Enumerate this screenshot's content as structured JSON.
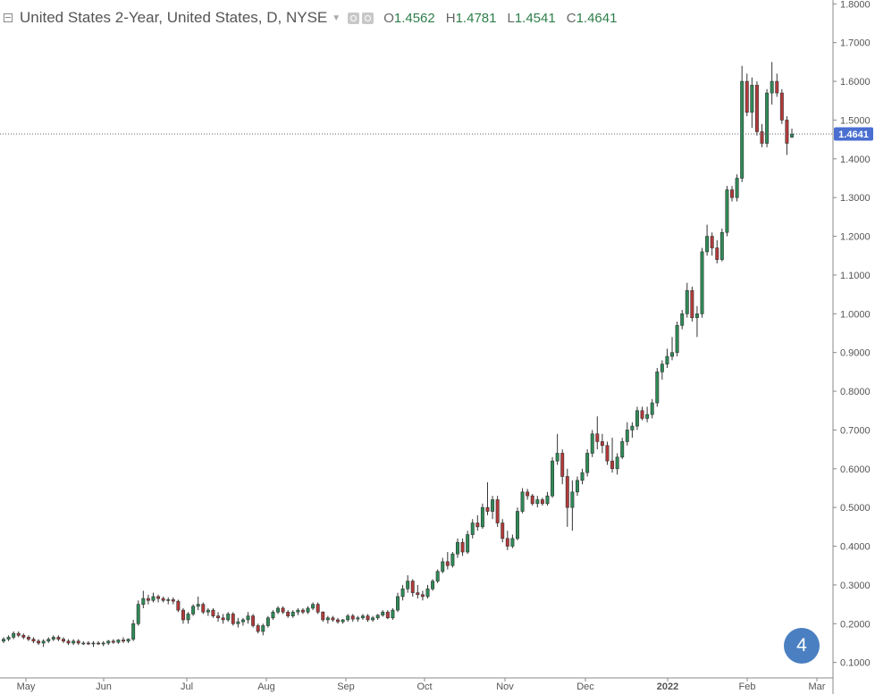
{
  "header": {
    "title": "United States 2-Year, United States, D, NYSE",
    "ohlc": [
      {
        "key": "O",
        "value": "1.4562"
      },
      {
        "key": "H",
        "value": "1.4781"
      },
      {
        "key": "L",
        "value": "1.4541"
      },
      {
        "key": "C",
        "value": "1.4641"
      }
    ]
  },
  "badge_label": "4",
  "colors": {
    "up": "#2e8b57",
    "down": "#b33a3a",
    "price_tag": "#4a6fd1",
    "grid_axis": "#999999"
  },
  "chart_data": {
    "type": "candlestick",
    "title": "United States 2-Year, United States, D, NYSE",
    "ylim": [
      0.06,
      1.81
    ],
    "y_ticks": [
      "0.1000",
      "0.2000",
      "0.3000",
      "0.4000",
      "0.5000",
      "0.6000",
      "0.7000",
      "0.8000",
      "0.9000",
      "1.0000",
      "1.1000",
      "1.2000",
      "1.3000",
      "1.4000",
      "1.5000",
      "1.6000",
      "1.7000",
      "1.8000"
    ],
    "x_ticks": [
      "May",
      "Jun",
      "Jul",
      "Aug",
      "Sep",
      "Oct",
      "Nov",
      "Dec",
      "2022",
      "Feb",
      "Mar"
    ],
    "last_price": "1.4641",
    "series": [
      {
        "name": "daily",
        "values": [
          [
            0.155,
            0.165,
            0.15,
            0.16
          ],
          [
            0.16,
            0.17,
            0.155,
            0.165
          ],
          [
            0.165,
            0.18,
            0.16,
            0.175
          ],
          [
            0.175,
            0.18,
            0.165,
            0.17
          ],
          [
            0.17,
            0.175,
            0.16,
            0.165
          ],
          [
            0.165,
            0.17,
            0.155,
            0.16
          ],
          [
            0.16,
            0.165,
            0.15,
            0.155
          ],
          [
            0.155,
            0.16,
            0.145,
            0.15
          ],
          [
            0.15,
            0.16,
            0.14,
            0.155
          ],
          [
            0.155,
            0.165,
            0.15,
            0.16
          ],
          [
            0.16,
            0.17,
            0.155,
            0.165
          ],
          [
            0.165,
            0.17,
            0.155,
            0.16
          ],
          [
            0.16,
            0.165,
            0.15,
            0.155
          ],
          [
            0.155,
            0.16,
            0.145,
            0.15
          ],
          [
            0.15,
            0.16,
            0.145,
            0.155
          ],
          [
            0.155,
            0.16,
            0.145,
            0.15
          ],
          [
            0.15,
            0.155,
            0.145,
            0.15
          ],
          [
            0.15,
            0.155,
            0.145,
            0.148
          ],
          [
            0.148,
            0.155,
            0.14,
            0.15
          ],
          [
            0.15,
            0.155,
            0.145,
            0.148
          ],
          [
            0.148,
            0.155,
            0.142,
            0.15
          ],
          [
            0.15,
            0.158,
            0.145,
            0.155
          ],
          [
            0.155,
            0.16,
            0.148,
            0.152
          ],
          [
            0.152,
            0.16,
            0.148,
            0.158
          ],
          [
            0.158,
            0.165,
            0.15,
            0.155
          ],
          [
            0.155,
            0.162,
            0.15,
            0.16
          ],
          [
            0.16,
            0.21,
            0.155,
            0.2
          ],
          [
            0.2,
            0.26,
            0.195,
            0.25
          ],
          [
            0.25,
            0.285,
            0.24,
            0.265
          ],
          [
            0.265,
            0.275,
            0.25,
            0.26
          ],
          [
            0.26,
            0.28,
            0.255,
            0.27
          ],
          [
            0.27,
            0.275,
            0.255,
            0.265
          ],
          [
            0.265,
            0.27,
            0.255,
            0.26
          ],
          [
            0.26,
            0.268,
            0.25,
            0.262
          ],
          [
            0.262,
            0.268,
            0.25,
            0.258
          ],
          [
            0.258,
            0.262,
            0.23,
            0.235
          ],
          [
            0.235,
            0.24,
            0.2,
            0.21
          ],
          [
            0.21,
            0.23,
            0.2,
            0.225
          ],
          [
            0.225,
            0.25,
            0.22,
            0.245
          ],
          [
            0.245,
            0.27,
            0.235,
            0.25
          ],
          [
            0.25,
            0.255,
            0.225,
            0.23
          ],
          [
            0.23,
            0.24,
            0.22,
            0.235
          ],
          [
            0.235,
            0.24,
            0.215,
            0.22
          ],
          [
            0.22,
            0.23,
            0.205,
            0.215
          ],
          [
            0.215,
            0.225,
            0.2,
            0.21
          ],
          [
            0.21,
            0.23,
            0.205,
            0.225
          ],
          [
            0.225,
            0.23,
            0.195,
            0.2
          ],
          [
            0.2,
            0.215,
            0.19,
            0.205
          ],
          [
            0.205,
            0.215,
            0.195,
            0.21
          ],
          [
            0.21,
            0.23,
            0.2,
            0.22
          ],
          [
            0.22,
            0.225,
            0.19,
            0.195
          ],
          [
            0.195,
            0.2,
            0.175,
            0.18
          ],
          [
            0.18,
            0.2,
            0.17,
            0.195
          ],
          [
            0.195,
            0.22,
            0.19,
            0.215
          ],
          [
            0.215,
            0.235,
            0.21,
            0.23
          ],
          [
            0.23,
            0.245,
            0.225,
            0.24
          ],
          [
            0.24,
            0.245,
            0.225,
            0.23
          ],
          [
            0.23,
            0.235,
            0.215,
            0.22
          ],
          [
            0.22,
            0.235,
            0.215,
            0.23
          ],
          [
            0.23,
            0.24,
            0.222,
            0.235
          ],
          [
            0.235,
            0.24,
            0.225,
            0.23
          ],
          [
            0.23,
            0.245,
            0.225,
            0.24
          ],
          [
            0.24,
            0.255,
            0.235,
            0.25
          ],
          [
            0.25,
            0.255,
            0.225,
            0.23
          ],
          [
            0.23,
            0.232,
            0.205,
            0.21
          ],
          [
            0.21,
            0.22,
            0.2,
            0.215
          ],
          [
            0.215,
            0.22,
            0.205,
            0.21
          ],
          [
            0.21,
            0.215,
            0.2,
            0.205
          ],
          [
            0.205,
            0.212,
            0.2,
            0.21
          ],
          [
            0.21,
            0.225,
            0.205,
            0.22
          ],
          [
            0.22,
            0.225,
            0.205,
            0.212
          ],
          [
            0.212,
            0.22,
            0.205,
            0.215
          ],
          [
            0.215,
            0.225,
            0.21,
            0.22
          ],
          [
            0.22,
            0.225,
            0.205,
            0.21
          ],
          [
            0.21,
            0.22,
            0.205,
            0.215
          ],
          [
            0.215,
            0.225,
            0.21,
            0.222
          ],
          [
            0.222,
            0.235,
            0.218,
            0.23
          ],
          [
            0.23,
            0.235,
            0.212,
            0.215
          ],
          [
            0.215,
            0.24,
            0.21,
            0.235
          ],
          [
            0.235,
            0.28,
            0.23,
            0.27
          ],
          [
            0.27,
            0.3,
            0.26,
            0.29
          ],
          [
            0.29,
            0.325,
            0.28,
            0.31
          ],
          [
            0.31,
            0.315,
            0.27,
            0.28
          ],
          [
            0.28,
            0.3,
            0.265,
            0.275
          ],
          [
            0.275,
            0.285,
            0.26,
            0.27
          ],
          [
            0.27,
            0.3,
            0.265,
            0.29
          ],
          [
            0.29,
            0.315,
            0.285,
            0.31
          ],
          [
            0.31,
            0.34,
            0.305,
            0.335
          ],
          [
            0.335,
            0.37,
            0.33,
            0.36
          ],
          [
            0.36,
            0.385,
            0.34,
            0.35
          ],
          [
            0.35,
            0.385,
            0.345,
            0.38
          ],
          [
            0.38,
            0.42,
            0.37,
            0.41
          ],
          [
            0.41,
            0.42,
            0.375,
            0.385
          ],
          [
            0.385,
            0.44,
            0.38,
            0.43
          ],
          [
            0.43,
            0.47,
            0.42,
            0.46
          ],
          [
            0.46,
            0.48,
            0.44,
            0.45
          ],
          [
            0.45,
            0.51,
            0.445,
            0.5
          ],
          [
            0.5,
            0.565,
            0.48,
            0.49
          ],
          [
            0.49,
            0.53,
            0.47,
            0.52
          ],
          [
            0.52,
            0.53,
            0.45,
            0.46
          ],
          [
            0.46,
            0.47,
            0.41,
            0.42
          ],
          [
            0.42,
            0.44,
            0.39,
            0.4
          ],
          [
            0.4,
            0.43,
            0.395,
            0.42
          ],
          [
            0.42,
            0.5,
            0.415,
            0.49
          ],
          [
            0.49,
            0.55,
            0.485,
            0.54
          ],
          [
            0.54,
            0.548,
            0.52,
            0.53
          ],
          [
            0.53,
            0.535,
            0.505,
            0.51
          ],
          [
            0.51,
            0.53,
            0.5,
            0.52
          ],
          [
            0.52,
            0.525,
            0.505,
            0.51
          ],
          [
            0.51,
            0.54,
            0.505,
            0.53
          ],
          [
            0.53,
            0.63,
            0.525,
            0.62
          ],
          [
            0.62,
            0.69,
            0.61,
            0.64
          ],
          [
            0.64,
            0.65,
            0.56,
            0.58
          ],
          [
            0.58,
            0.6,
            0.45,
            0.5
          ],
          [
            0.5,
            0.57,
            0.44,
            0.54
          ],
          [
            0.54,
            0.58,
            0.53,
            0.57
          ],
          [
            0.57,
            0.6,
            0.56,
            0.59
          ],
          [
            0.59,
            0.65,
            0.58,
            0.64
          ],
          [
            0.64,
            0.7,
            0.63,
            0.69
          ],
          [
            0.69,
            0.735,
            0.65,
            0.67
          ],
          [
            0.67,
            0.69,
            0.64,
            0.66
          ],
          [
            0.66,
            0.67,
            0.61,
            0.62
          ],
          [
            0.62,
            0.68,
            0.59,
            0.6
          ],
          [
            0.6,
            0.64,
            0.585,
            0.63
          ],
          [
            0.63,
            0.68,
            0.625,
            0.67
          ],
          [
            0.67,
            0.72,
            0.66,
            0.7
          ],
          [
            0.7,
            0.72,
            0.68,
            0.71
          ],
          [
            0.71,
            0.76,
            0.7,
            0.75
          ],
          [
            0.75,
            0.76,
            0.725,
            0.73
          ],
          [
            0.73,
            0.76,
            0.72,
            0.74
          ],
          [
            0.74,
            0.78,
            0.73,
            0.77
          ],
          [
            0.77,
            0.86,
            0.76,
            0.85
          ],
          [
            0.85,
            0.88,
            0.83,
            0.87
          ],
          [
            0.87,
            0.91,
            0.86,
            0.89
          ],
          [
            0.89,
            0.94,
            0.88,
            0.9
          ],
          [
            0.9,
            0.98,
            0.89,
            0.97
          ],
          [
            0.97,
            1.01,
            0.96,
            1.0
          ],
          [
            1.0,
            1.08,
            0.99,
            1.06
          ],
          [
            1.06,
            1.07,
            0.98,
            0.99
          ],
          [
            0.99,
            1.02,
            0.94,
            1.0
          ],
          [
            1.0,
            1.17,
            0.99,
            1.16
          ],
          [
            1.16,
            1.23,
            1.15,
            1.2
          ],
          [
            1.2,
            1.21,
            1.15,
            1.17
          ],
          [
            1.17,
            1.19,
            1.13,
            1.14
          ],
          [
            1.14,
            1.22,
            1.135,
            1.21
          ],
          [
            1.21,
            1.33,
            1.2,
            1.32
          ],
          [
            1.32,
            1.33,
            1.29,
            1.3
          ],
          [
            1.3,
            1.36,
            1.29,
            1.35
          ],
          [
            1.35,
            1.64,
            1.34,
            1.6
          ],
          [
            1.6,
            1.62,
            1.51,
            1.52
          ],
          [
            1.52,
            1.61,
            1.48,
            1.59
          ],
          [
            1.59,
            1.6,
            1.46,
            1.47
          ],
          [
            1.47,
            1.49,
            1.43,
            1.44
          ],
          [
            1.44,
            1.58,
            1.43,
            1.57
          ],
          [
            1.57,
            1.65,
            1.54,
            1.6
          ],
          [
            1.6,
            1.62,
            1.56,
            1.57
          ],
          [
            1.57,
            1.58,
            1.49,
            1.5
          ],
          [
            1.5,
            1.51,
            1.41,
            1.44
          ],
          [
            1.456,
            1.478,
            1.454,
            1.464
          ]
        ]
      }
    ]
  }
}
